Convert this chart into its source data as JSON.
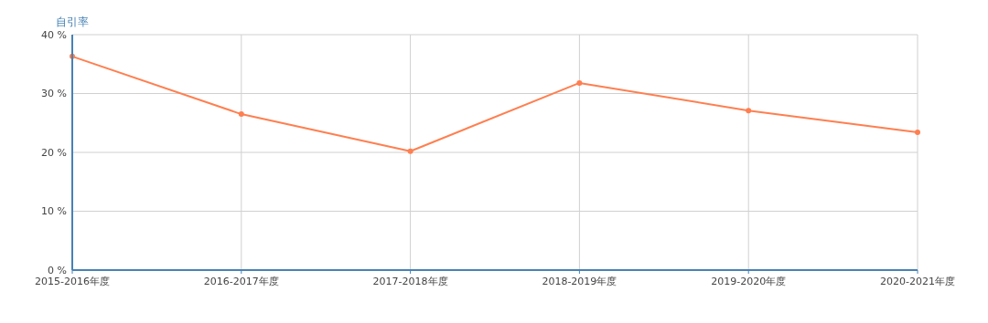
{
  "chart_data": {
    "type": "line",
    "ylabel": "自引率",
    "categories": [
      "2015-2016年度",
      "2016-2017年度",
      "2017-2018年度",
      "2018-2019年度",
      "2019-2020年度",
      "2020-2021年度"
    ],
    "series": [
      {
        "color": "#ff7f50",
        "values": [
          36.3,
          26.5,
          20.2,
          31.8,
          27.1,
          23.4
        ]
      }
    ],
    "ylim": [
      0,
      40
    ],
    "yticks": [
      {
        "value": 0,
        "label": "0 %"
      },
      {
        "value": 10,
        "label": "10 %"
      },
      {
        "value": 20,
        "label": "20 %"
      },
      {
        "value": 30,
        "label": "30 %"
      },
      {
        "value": 40,
        "label": "40 %"
      }
    ],
    "grid": true,
    "marker": "circle",
    "line_style": "solid"
  }
}
